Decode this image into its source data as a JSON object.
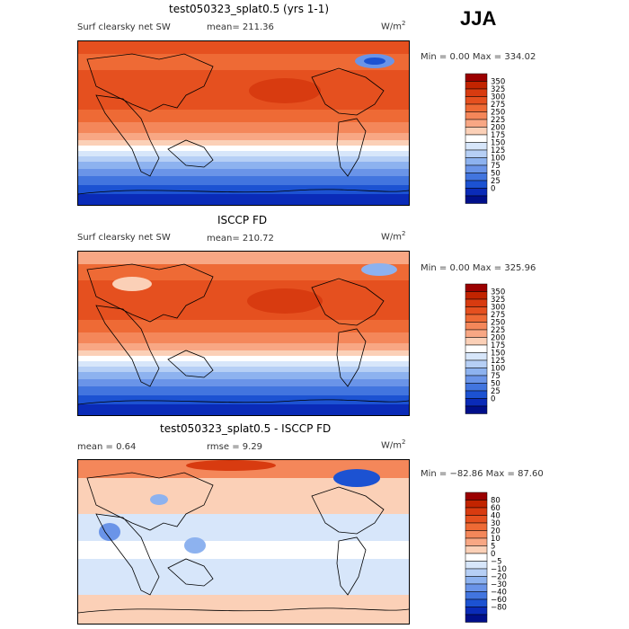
{
  "season": "JJA",
  "panels": [
    {
      "title": "test050323_splat0.5 (yrs 1-1)",
      "field": "Surf clearsky net SW",
      "mean": "mean= 211.36",
      "units": "W/m",
      "units_sup": "2",
      "minmax": "Min =    0.00 Max = 334.02",
      "kind": "absolute"
    },
    {
      "title": "ISCCP FD",
      "field": "Surf clearsky net SW",
      "mean": "mean= 210.72",
      "units": "W/m",
      "units_sup": "2",
      "minmax": "Min =    0.00 Max = 325.96",
      "kind": "absolute"
    },
    {
      "title": "test050323_splat0.5 - ISCCP FD",
      "field": "mean =    0.64",
      "mean": "rmse =    9.29",
      "units": "W/m",
      "units_sup": "2",
      "minmax": "Min = −82.86 Max =  87.60",
      "kind": "difference"
    }
  ],
  "colorbars": {
    "absolute": {
      "labels": [
        "350",
        "325",
        "300",
        "275",
        "250",
        "225",
        "200",
        "175",
        "150",
        "125",
        "100",
        "75",
        "50",
        "25",
        "0"
      ],
      "colors": [
        "#9b0000",
        "#c22400",
        "#d83b10",
        "#e5501f",
        "#ee6a35",
        "#f4875a",
        "#f8a784",
        "#fbd0b7",
        "#ffffff",
        "#d7e6fa",
        "#b6cff5",
        "#8db2ef",
        "#6a94e8",
        "#4275df",
        "#1c52d2",
        "#0a2bb8",
        "#000f8a"
      ]
    },
    "difference": {
      "labels": [
        "80",
        "60",
        "40",
        "30",
        "20",
        "10",
        "5",
        "0",
        "−5",
        "−10",
        "−20",
        "−30",
        "−40",
        "−60",
        "−80"
      ],
      "colors": [
        "#9b0000",
        "#c22400",
        "#d83b10",
        "#e5501f",
        "#ee6a35",
        "#f4875a",
        "#f8a784",
        "#fbd0b7",
        "#ffffff",
        "#d7e6fa",
        "#b6cff5",
        "#8db2ef",
        "#6a94e8",
        "#4275df",
        "#1c52d2",
        "#0a2bb8",
        "#000f8a"
      ]
    }
  }
}
